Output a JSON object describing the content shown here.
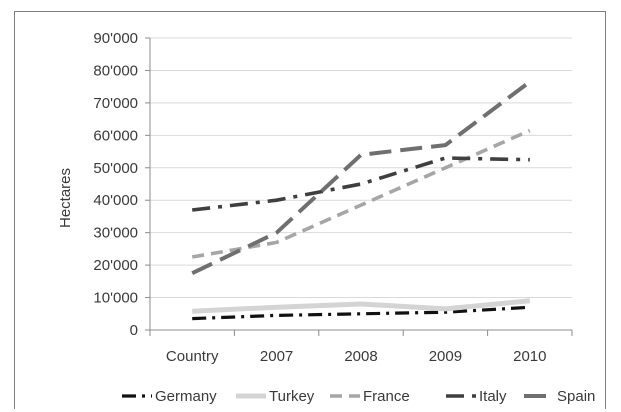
{
  "chart_data": {
    "type": "line",
    "title": "",
    "xlabel": "",
    "ylabel": "Hectares",
    "categories": [
      "Country",
      "2007",
      "2008",
      "2009",
      "2010"
    ],
    "y_ticks": [
      "0",
      "10'000",
      "20'000",
      "30'000",
      "40'000",
      "50'000",
      "60'000",
      "70'000",
      "80'000",
      "90'000"
    ],
    "ylim": [
      0,
      90000
    ],
    "grid": "horizontal",
    "legend_position": "bottom",
    "series": [
      {
        "name": "Germany",
        "color": "#111111",
        "dash": "dashdot-dense",
        "width": 3.2,
        "values": [
          3500,
          4500,
          5000,
          5500,
          7000
        ]
      },
      {
        "name": "Turkey",
        "color": "#d4d4d4",
        "dash": "solid",
        "width": 5,
        "values": [
          5800,
          7000,
          8000,
          6500,
          9000
        ]
      },
      {
        "name": "France",
        "color": "#a6a6a6",
        "dash": "dashed",
        "width": 3.6,
        "values": [
          22500,
          27000,
          38500,
          50000,
          61500
        ]
      },
      {
        "name": "Italy",
        "color": "#3f3f3f",
        "dash": "dashdot",
        "width": 3.6,
        "values": [
          37000,
          40000,
          45000,
          53000,
          52500
        ]
      },
      {
        "name": "Spain",
        "color": "#6f6f6f",
        "dash": "longdash",
        "width": 4,
        "values": [
          17500,
          30000,
          54000,
          57000,
          76500
        ]
      }
    ]
  }
}
